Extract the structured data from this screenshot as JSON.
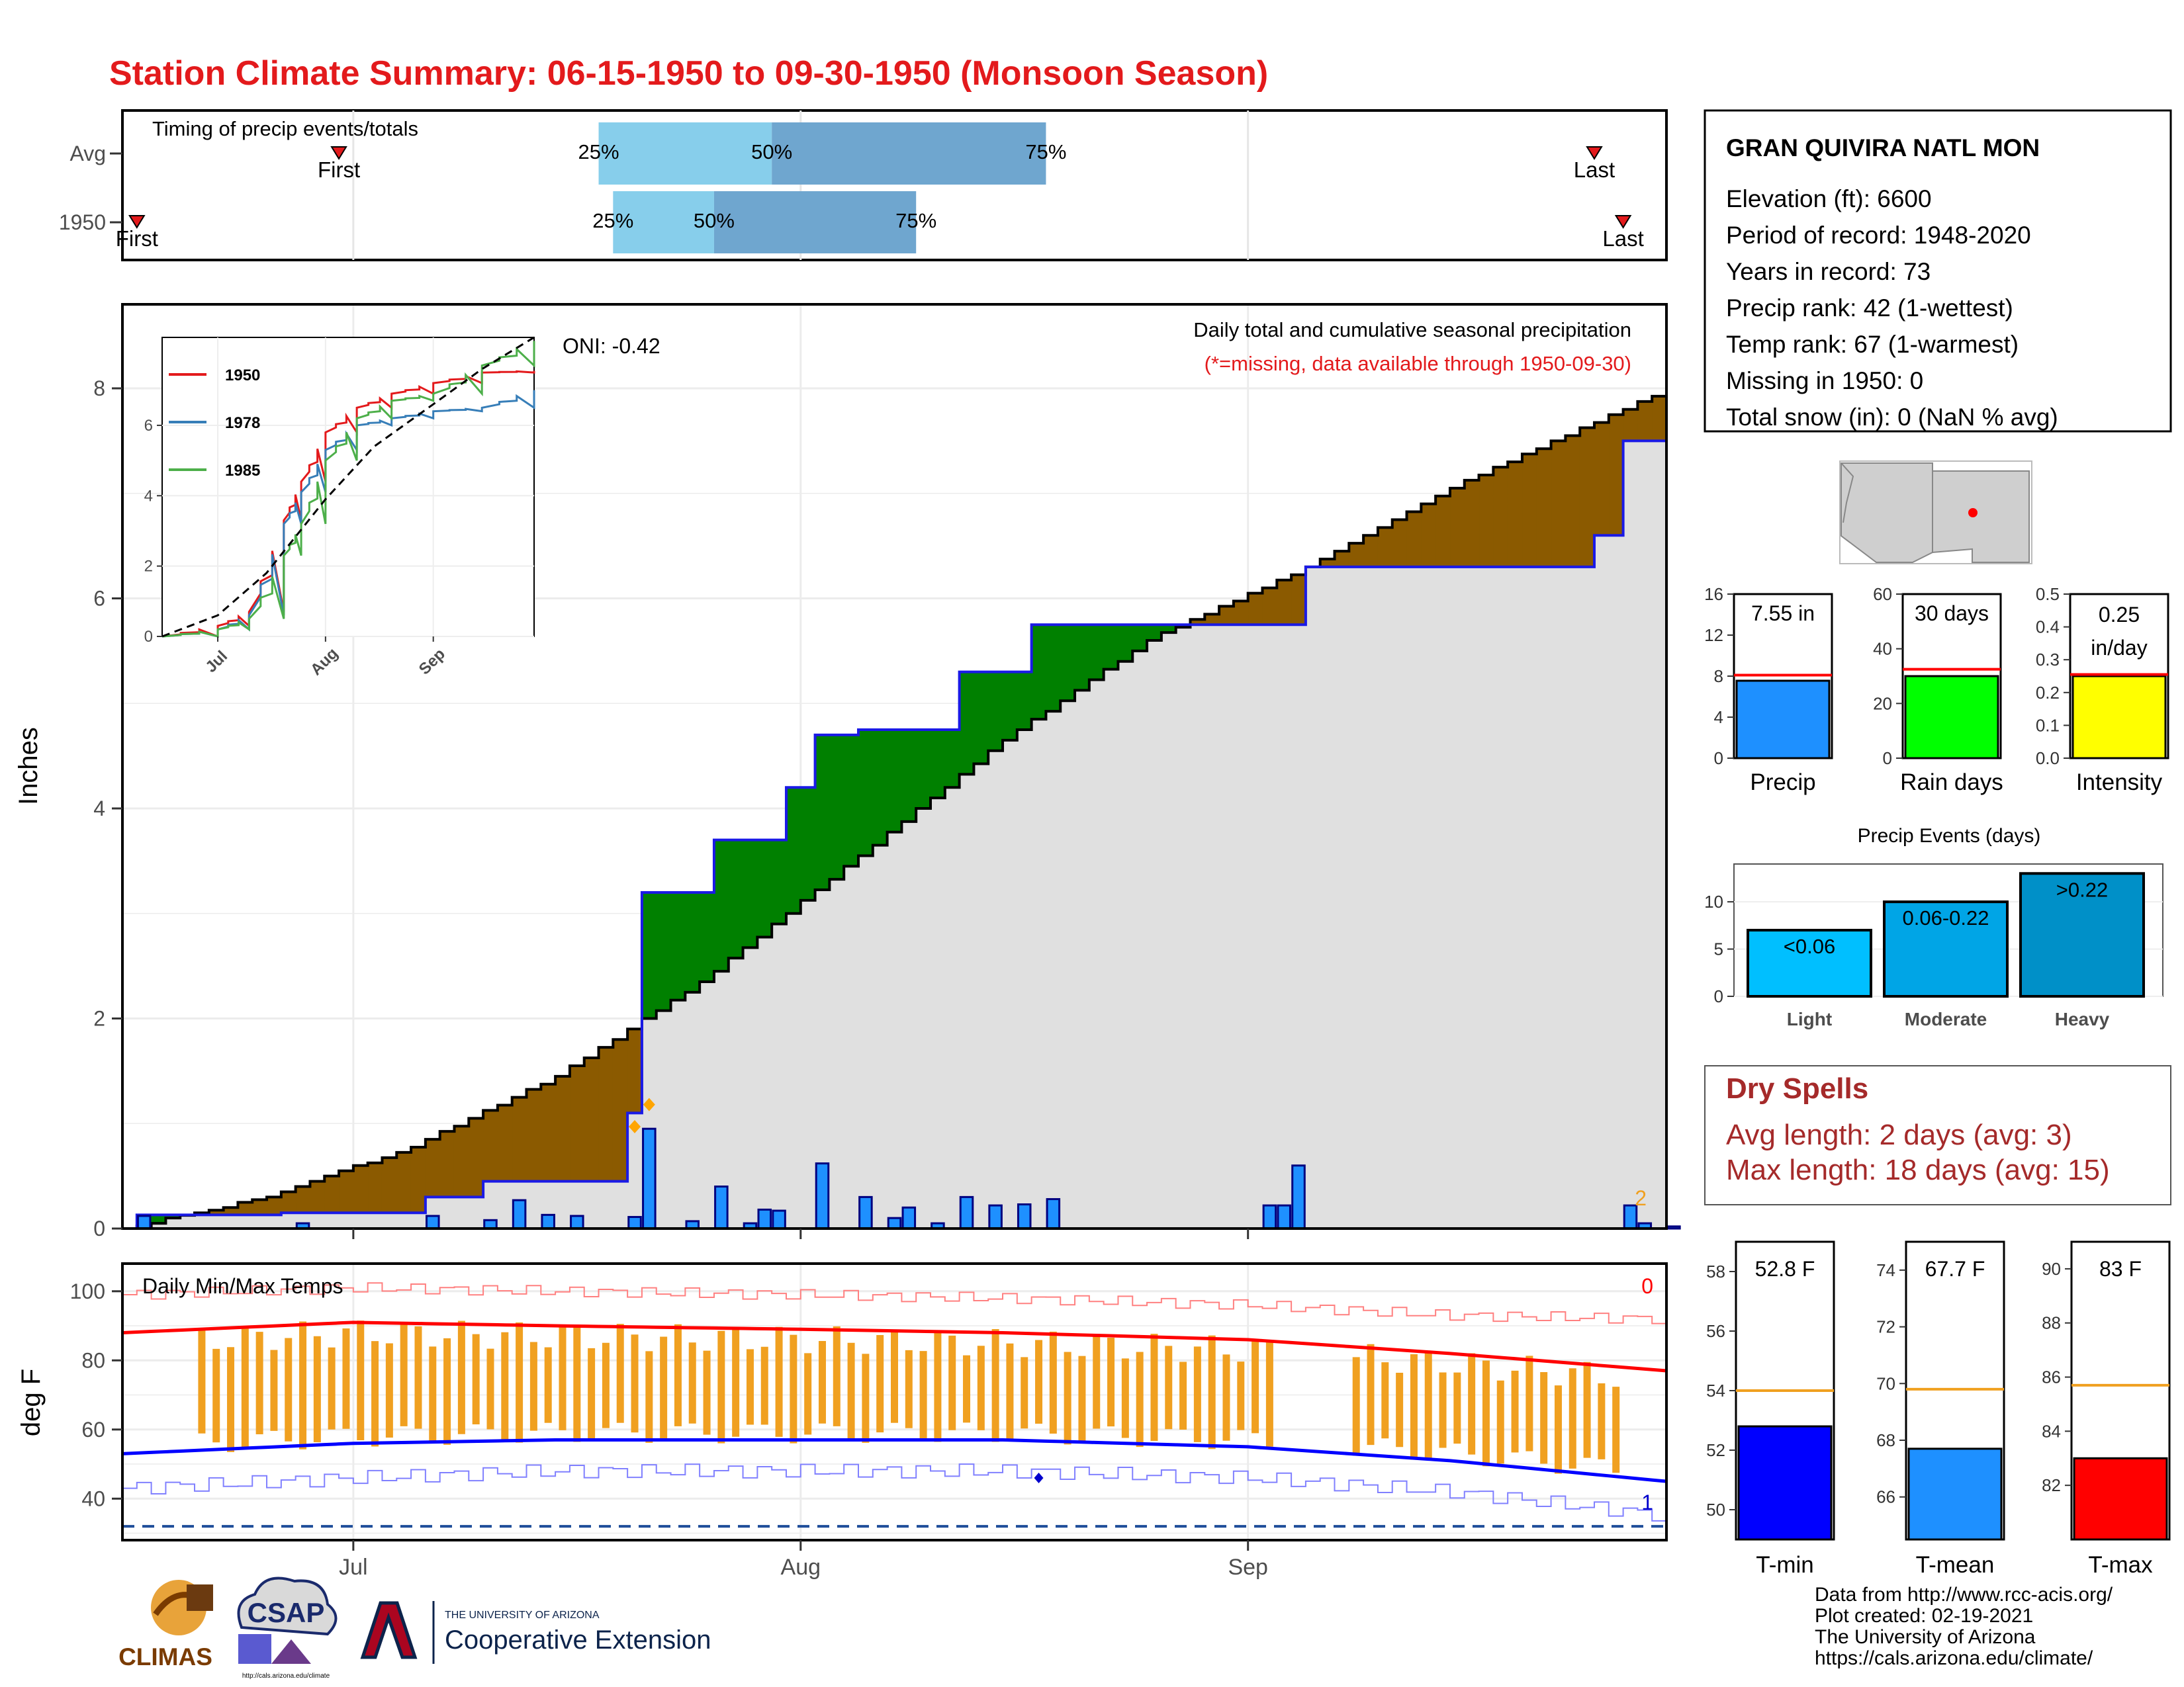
{
  "title": "Station Climate Summary: 06-15-1950 to 09-30-1950 (Monsoon Season)",
  "colors": {
    "title_red": "#e31a1c",
    "q_light": "#87ceeb",
    "q_dark": "#6fa6cf",
    "brown": "#8b5a00",
    "green": "#008000",
    "gray_fill": "#e0e0e0",
    "blue_line": "#1a1ae6",
    "bar_blue": "#1e90ff",
    "orange": "#f0a020",
    "dark_red": "#a52a2a"
  },
  "timing": {
    "label": "Timing of precip events/totals",
    "rows": [
      {
        "name": "Avg",
        "first": "First",
        "last": "Last",
        "p25": "25%",
        "p50": "50%",
        "p75": "75%",
        "first_date": "1950-06-30",
        "last_date": "1950-09-25",
        "p25_date": "1950-07-18",
        "p50_date": "1950-07-30",
        "p75_date": "1950-08-18"
      },
      {
        "name": "1950",
        "first": "First",
        "last": "Last",
        "p25": "25%",
        "p50": "50%",
        "p75": "75%",
        "first_date": "1950-06-16",
        "last_date": "1950-09-27",
        "p25_date": "1950-07-19",
        "p50_date": "1950-07-26",
        "p75_date": "1950-08-09"
      }
    ]
  },
  "station": {
    "name": "GRAN QUIVIRA NATL MON",
    "lines": [
      "Elevation (ft): 6600",
      "Period of record: 1948-2020",
      "Years in record: 73",
      "Precip rank: 42 (1-wettest)",
      "Temp rank: 67 (1-warmest)",
      "Missing in 1950: 0",
      "Total snow (in): 0 (NaN % avg)"
    ]
  },
  "main_chart": {
    "ylabel": "Inches",
    "title_line": "Daily total and cumulative seasonal precipitation",
    "missing_note": "(*=missing, data available through 1950-09-30)",
    "oni": "ONI: -0.42",
    "corner_count": "2",
    "y_ticks": [
      "0",
      "2",
      "4",
      "6",
      "8"
    ],
    "x_ticks": [
      "Jul",
      "Aug",
      "Sep"
    ]
  },
  "inset": {
    "legend": [
      "1950",
      "1978",
      "1985"
    ],
    "legend_colors": [
      "#e31a1c",
      "#377eb8",
      "#4daf4a"
    ],
    "y_ticks": [
      "0",
      "2",
      "4",
      "6"
    ],
    "x_ticks": [
      "Jul",
      "Aug",
      "Sep"
    ]
  },
  "mini_bars": [
    {
      "label": "Precip",
      "value_label": "7.55 in",
      "value": 7.55,
      "avg": 8.1,
      "ymax": 16,
      "ticks": [
        "0",
        "4",
        "8",
        "12",
        "16"
      ],
      "color": "#1e90ff"
    },
    {
      "label": "Rain days",
      "value_label": "30 days",
      "value": 30,
      "avg": 32.5,
      "ymax": 60,
      "ticks": [
        "0",
        "20",
        "40",
        "60"
      ],
      "color": "#00ff00"
    },
    {
      "label": "Intensity",
      "value_label": "0.25 in/day",
      "value_label_lines": [
        "0.25",
        "in/day"
      ],
      "value": 0.25,
      "avg": 0.255,
      "ymax": 0.5,
      "ticks": [
        "0.0",
        "0.1",
        "0.2",
        "0.3",
        "0.4",
        "0.5"
      ],
      "color": "#ffff00"
    }
  ],
  "events": {
    "title": "Precip Events (days)",
    "y_ticks": [
      "0",
      "5",
      "10"
    ],
    "categories": [
      "Light",
      "Moderate",
      "Heavy"
    ],
    "bar_labels": [
      "<0.06",
      "0.06-0.22",
      ">0.22"
    ],
    "values": [
      7,
      10,
      13
    ],
    "colors": [
      "#00bfff",
      "#00a5e6",
      "#0090c8"
    ]
  },
  "dry_spells": {
    "title": "Dry Spells",
    "lines": [
      "Avg length: 2 days (avg: 3)",
      "Max length: 18 days (avg: 15)"
    ]
  },
  "temps_chart": {
    "title": "Daily Min/Max Temps",
    "ylabel": "deg F",
    "y_ticks": [
      "40",
      "60",
      "80",
      "100"
    ],
    "x_ticks": [
      "Jul",
      "Aug",
      "Sep"
    ],
    "count_top": "0",
    "count_bottom": "1"
  },
  "temp_bars": [
    {
      "label": "T-min",
      "value_label": "52.8 F",
      "value": 52.8,
      "avg": 54.0,
      "ymin": 49,
      "ymax": 59,
      "ticks": [
        "50",
        "52",
        "54",
        "56",
        "58"
      ],
      "color": "#0000ff"
    },
    {
      "label": "T-mean",
      "value_label": "67.7 F",
      "value": 67.7,
      "avg": 69.8,
      "ymin": 64.5,
      "ymax": 75,
      "ticks": [
        "66",
        "68",
        "70",
        "72",
        "74"
      ],
      "color": "#1e90ff"
    },
    {
      "label": "T-max",
      "value_label": "83 F",
      "value": 83.0,
      "avg": 85.7,
      "ymin": 80,
      "ymax": 91,
      "ticks": [
        "82",
        "84",
        "86",
        "88",
        "90"
      ],
      "color": "#ff0000"
    }
  ],
  "footer": {
    "lines": [
      "Data from http://www.rcc-acis.org/",
      "Plot created: 02-19-2021",
      "The University of Arizona",
      "https://cals.arizona.edu/climate/"
    ],
    "logos": [
      "CLIMAS",
      "CSAP",
      "http://cals.arizona.edu/climate"
    ],
    "ua_lines": [
      "THE UNIVERSITY OF ARIZONA",
      "Cooperative Extension"
    ]
  },
  "chart_data": [
    {
      "type": "area",
      "title": "Daily total and cumulative seasonal precipitation",
      "ylabel": "Inches",
      "ylim": [
        0,
        8.8
      ],
      "xlim": [
        "1950-06-15",
        "1950-09-30"
      ],
      "series": [
        {
          "name": "",
          "x": [
            "1950-06-15",
            "1950-06-25",
            "1950-07-05",
            "1950-07-15",
            "1950-07-25",
            "1950-08-05",
            "1950-08-15",
            "1950-08-25",
            "1950-09-05",
            "1950-09-15",
            "1950-09-30"
          ],
          "values": [
            0.0,
            0.3,
            0.78,
            1.45,
            2.35,
            3.55,
            4.65,
            5.6,
            6.3,
            7.05,
            8.0
          ]
        },
        {
          "name": "1950",
          "x": [
            "1950-06-16",
            "1950-06-26",
            "1950-07-06",
            "1950-07-10",
            "1950-07-20",
            "1950-07-21",
            "1950-07-26",
            "1950-07-31",
            "1950-08-02",
            "1950-08-05",
            "1950-08-12",
            "1950-08-17",
            "1950-09-02",
            "1950-09-05",
            "1950-09-25",
            "1950-09-27",
            "1950-09-30"
          ],
          "values": [
            0.13,
            0.15,
            0.3,
            0.45,
            1.1,
            3.2,
            3.7,
            4.2,
            4.7,
            4.75,
            5.3,
            5.75,
            5.75,
            6.3,
            6.6,
            7.5,
            7.55
          ]
        }
      ],
      "daily_bars": {
        "x": [
          "1950-06-16",
          "1950-06-27",
          "1950-07-06",
          "1950-07-10",
          "1950-07-12",
          "1950-07-14",
          "1950-07-16",
          "1950-07-20",
          "1950-07-21",
          "1950-07-24",
          "1950-07-26",
          "1950-07-28",
          "1950-07-29",
          "1950-07-30",
          "1950-08-02",
          "1950-08-05",
          "1950-08-07",
          "1950-08-08",
          "1950-08-10",
          "1950-08-12",
          "1950-08-14",
          "1950-08-16",
          "1950-08-18",
          "1950-09-02",
          "1950-09-03",
          "1950-09-04",
          "1950-09-27",
          "1950-09-28",
          "1950-09-30"
        ],
        "values": [
          0.12,
          0.05,
          0.12,
          0.08,
          0.27,
          0.13,
          0.12,
          0.11,
          0.95,
          0.07,
          0.4,
          0.05,
          0.18,
          0.17,
          0.62,
          0.3,
          0.1,
          0.2,
          0.05,
          0.3,
          0.22,
          0.23,
          0.28,
          0.22,
          0.22,
          0.6,
          0.22,
          0.05,
          0.02
        ]
      },
      "corner_count": 2
    },
    {
      "type": "line",
      "title": "",
      "ylim": [
        0,
        8.5
      ],
      "xlim": [
        "1950-06-15",
        "1950-09-30"
      ],
      "series": [
        {
          "name": "1950",
          "x": [
            "06-15",
            "07-01",
            "07-10",
            "07-20",
            "07-25",
            "08-01",
            "08-10",
            "08-20",
            "09-01",
            "09-15",
            "09-30"
          ],
          "values": [
            0,
            0.3,
            0.7,
            3.3,
            4.4,
            5.8,
            6.5,
            6.9,
            7.2,
            7.5,
            7.55
          ]
        },
        {
          "name": "1978",
          "x": [
            "06-15",
            "07-01",
            "07-10",
            "07-20",
            "07-25",
            "08-01",
            "08-10",
            "08-20",
            "09-01",
            "09-15",
            "09-30"
          ],
          "values": [
            0,
            0.2,
            0.6,
            3.2,
            4.1,
            5.3,
            6.0,
            6.2,
            6.4,
            6.5,
            7.0
          ]
        },
        {
          "name": "1985",
          "x": [
            "06-15",
            "07-01",
            "07-10",
            "07-20",
            "07-25",
            "08-01",
            "08-10",
            "08-20",
            "09-01",
            "09-15",
            "09-30"
          ],
          "values": [
            0,
            0.2,
            0.5,
            2.3,
            3.2,
            5.0,
            6.2,
            6.7,
            6.9,
            7.7,
            8.4
          ]
        },
        {
          "name": "",
          "x": [
            "06-15",
            "07-01",
            "07-15",
            "08-01",
            "08-15",
            "09-01",
            "09-15",
            "09-30"
          ],
          "values": [
            0,
            0.6,
            1.8,
            3.9,
            5.4,
            6.6,
            7.6,
            8.5
          ]
        }
      ]
    },
    {
      "type": "bar",
      "title": "",
      "categories": [
        "Precip",
        "Rain days",
        "Intensity"
      ],
      "values": [
        7.55,
        30,
        0.25
      ],
      "averages": [
        8.1,
        32.5,
        0.255
      ]
    },
    {
      "type": "bar",
      "title": "Precip Events (days)",
      "categories": [
        "Light",
        "Moderate",
        "Heavy"
      ],
      "values": [
        7,
        10,
        13
      ]
    },
    {
      "type": "line",
      "title": "Daily Min/Max Temps",
      "ylabel": "deg F",
      "ylim": [
        28,
        108
      ],
      "xlim": [
        "1950-06-15",
        "1950-09-30"
      ],
      "series": [
        {
          "name": "",
          "x": [
            "06-15",
            "07-01",
            "07-15",
            "08-01",
            "08-15",
            "09-01",
            "09-15",
            "09-30"
          ],
          "values": [
            88,
            91,
            90,
            89,
            88,
            86,
            82,
            77
          ]
        },
        {
          "name": "",
          "x": [
            "06-15",
            "07-01",
            "07-15",
            "08-01",
            "08-15",
            "09-01",
            "09-15",
            "09-30"
          ],
          "values": [
            53,
            56,
            57,
            57,
            57,
            55,
            51,
            45
          ]
        },
        {
          "name": "",
          "x": [
            "06-15",
            "07-01",
            "07-15",
            "08-01",
            "08-15",
            "09-01",
            "09-15",
            "09-30"
          ],
          "values": [
            99,
            101,
            100,
            99,
            98,
            96,
            93,
            92
          ]
        },
        {
          "name": "",
          "x": [
            "06-15",
            "07-01",
            "07-15",
            "08-01",
            "08-15",
            "09-01",
            "09-15",
            "09-30"
          ],
          "values": [
            43,
            46,
            48,
            48,
            48,
            46,
            42,
            35
          ]
        }
      ],
      "reference_line": 32,
      "count_top": 0,
      "count_bottom": 1
    },
    {
      "type": "bar",
      "title": "",
      "categories": [
        "T-min",
        "T-mean",
        "T-max"
      ],
      "values": [
        52.8,
        67.7,
        83.0
      ],
      "averages": [
        54.0,
        69.8,
        85.7
      ]
    }
  ]
}
